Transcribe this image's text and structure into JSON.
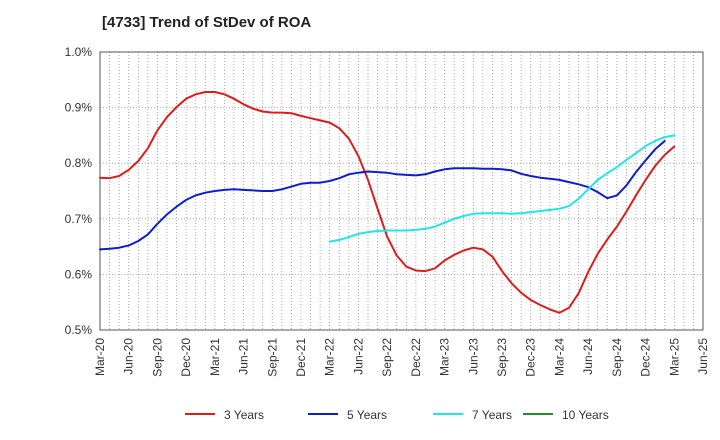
{
  "title": "[4733]  Trend of StDev of ROA",
  "chart_data": {
    "type": "line",
    "title": "[4733]  Trend of StDev of ROA",
    "x_labels": [
      "Mar-20",
      "Jun-20",
      "Sep-20",
      "Dec-20",
      "Mar-21",
      "Jun-21",
      "Sep-21",
      "Dec-21",
      "Mar-22",
      "Jun-22",
      "Sep-22",
      "Dec-22",
      "Mar-23",
      "Jun-23",
      "Sep-23",
      "Dec-23",
      "Mar-24",
      "Jun-24",
      "Sep-24",
      "Dec-24",
      "Mar-25",
      "Jun-25"
    ],
    "y_ticks": [
      "0.5%",
      "0.6%",
      "0.7%",
      "0.8%",
      "0.9%",
      "1.0%"
    ],
    "ylim": [
      0.5,
      1.0
    ],
    "y_unit": "%",
    "grid": true,
    "legend_position": "bottom",
    "series": [
      {
        "name": "3 Years",
        "color": "#dd1c1c",
        "start_index": 0,
        "values": [
          0.774,
          0.773,
          0.777,
          0.788,
          0.804,
          0.827,
          0.859,
          0.883,
          0.901,
          0.916,
          0.924,
          0.928,
          0.928,
          0.924,
          0.916,
          0.906,
          0.898,
          0.893,
          0.891,
          0.891,
          0.89,
          0.885,
          0.881,
          0.877,
          0.873,
          0.863,
          0.844,
          0.813,
          0.77,
          0.718,
          0.668,
          0.634,
          0.614,
          0.607,
          0.606,
          0.611,
          0.625,
          0.635,
          0.643,
          0.648,
          0.645,
          0.632,
          0.606,
          0.584,
          0.567,
          0.554,
          0.545,
          0.537,
          0.531,
          0.54,
          0.566,
          0.604,
          0.637,
          0.663,
          0.686,
          0.713,
          0.742,
          0.77,
          0.795,
          0.815,
          0.83
        ]
      },
      {
        "name": "5 Years",
        "color": "#0c1fcc",
        "start_index": 0,
        "values": [
          0.645,
          0.646,
          0.648,
          0.652,
          0.66,
          0.672,
          0.691,
          0.708,
          0.722,
          0.734,
          0.742,
          0.747,
          0.75,
          0.752,
          0.753,
          0.752,
          0.751,
          0.75,
          0.75,
          0.753,
          0.758,
          0.763,
          0.765,
          0.765,
          0.768,
          0.773,
          0.78,
          0.783,
          0.785,
          0.784,
          0.783,
          0.78,
          0.779,
          0.778,
          0.78,
          0.785,
          0.789,
          0.791,
          0.791,
          0.791,
          0.79,
          0.79,
          0.789,
          0.787,
          0.781,
          0.777,
          0.774,
          0.772,
          0.77,
          0.766,
          0.762,
          0.757,
          0.748,
          0.737,
          0.742,
          0.76,
          0.784,
          0.805,
          0.825,
          0.84
        ]
      },
      {
        "name": "7 Years",
        "color": "#22e5e5",
        "start_index": 24,
        "values": [
          0.659,
          0.662,
          0.667,
          0.673,
          0.676,
          0.678,
          0.679,
          0.679,
          0.679,
          0.68,
          0.682,
          0.686,
          0.693,
          0.7,
          0.705,
          0.709,
          0.71,
          0.71,
          0.71,
          0.709,
          0.71,
          0.712,
          0.714,
          0.716,
          0.718,
          0.723,
          0.736,
          0.753,
          0.77,
          0.782,
          0.793,
          0.806,
          0.818,
          0.831,
          0.84,
          0.847,
          0.85
        ]
      },
      {
        "name": "10 Years",
        "color": "#2a8a2a",
        "start_index": 0,
        "values": []
      }
    ]
  }
}
